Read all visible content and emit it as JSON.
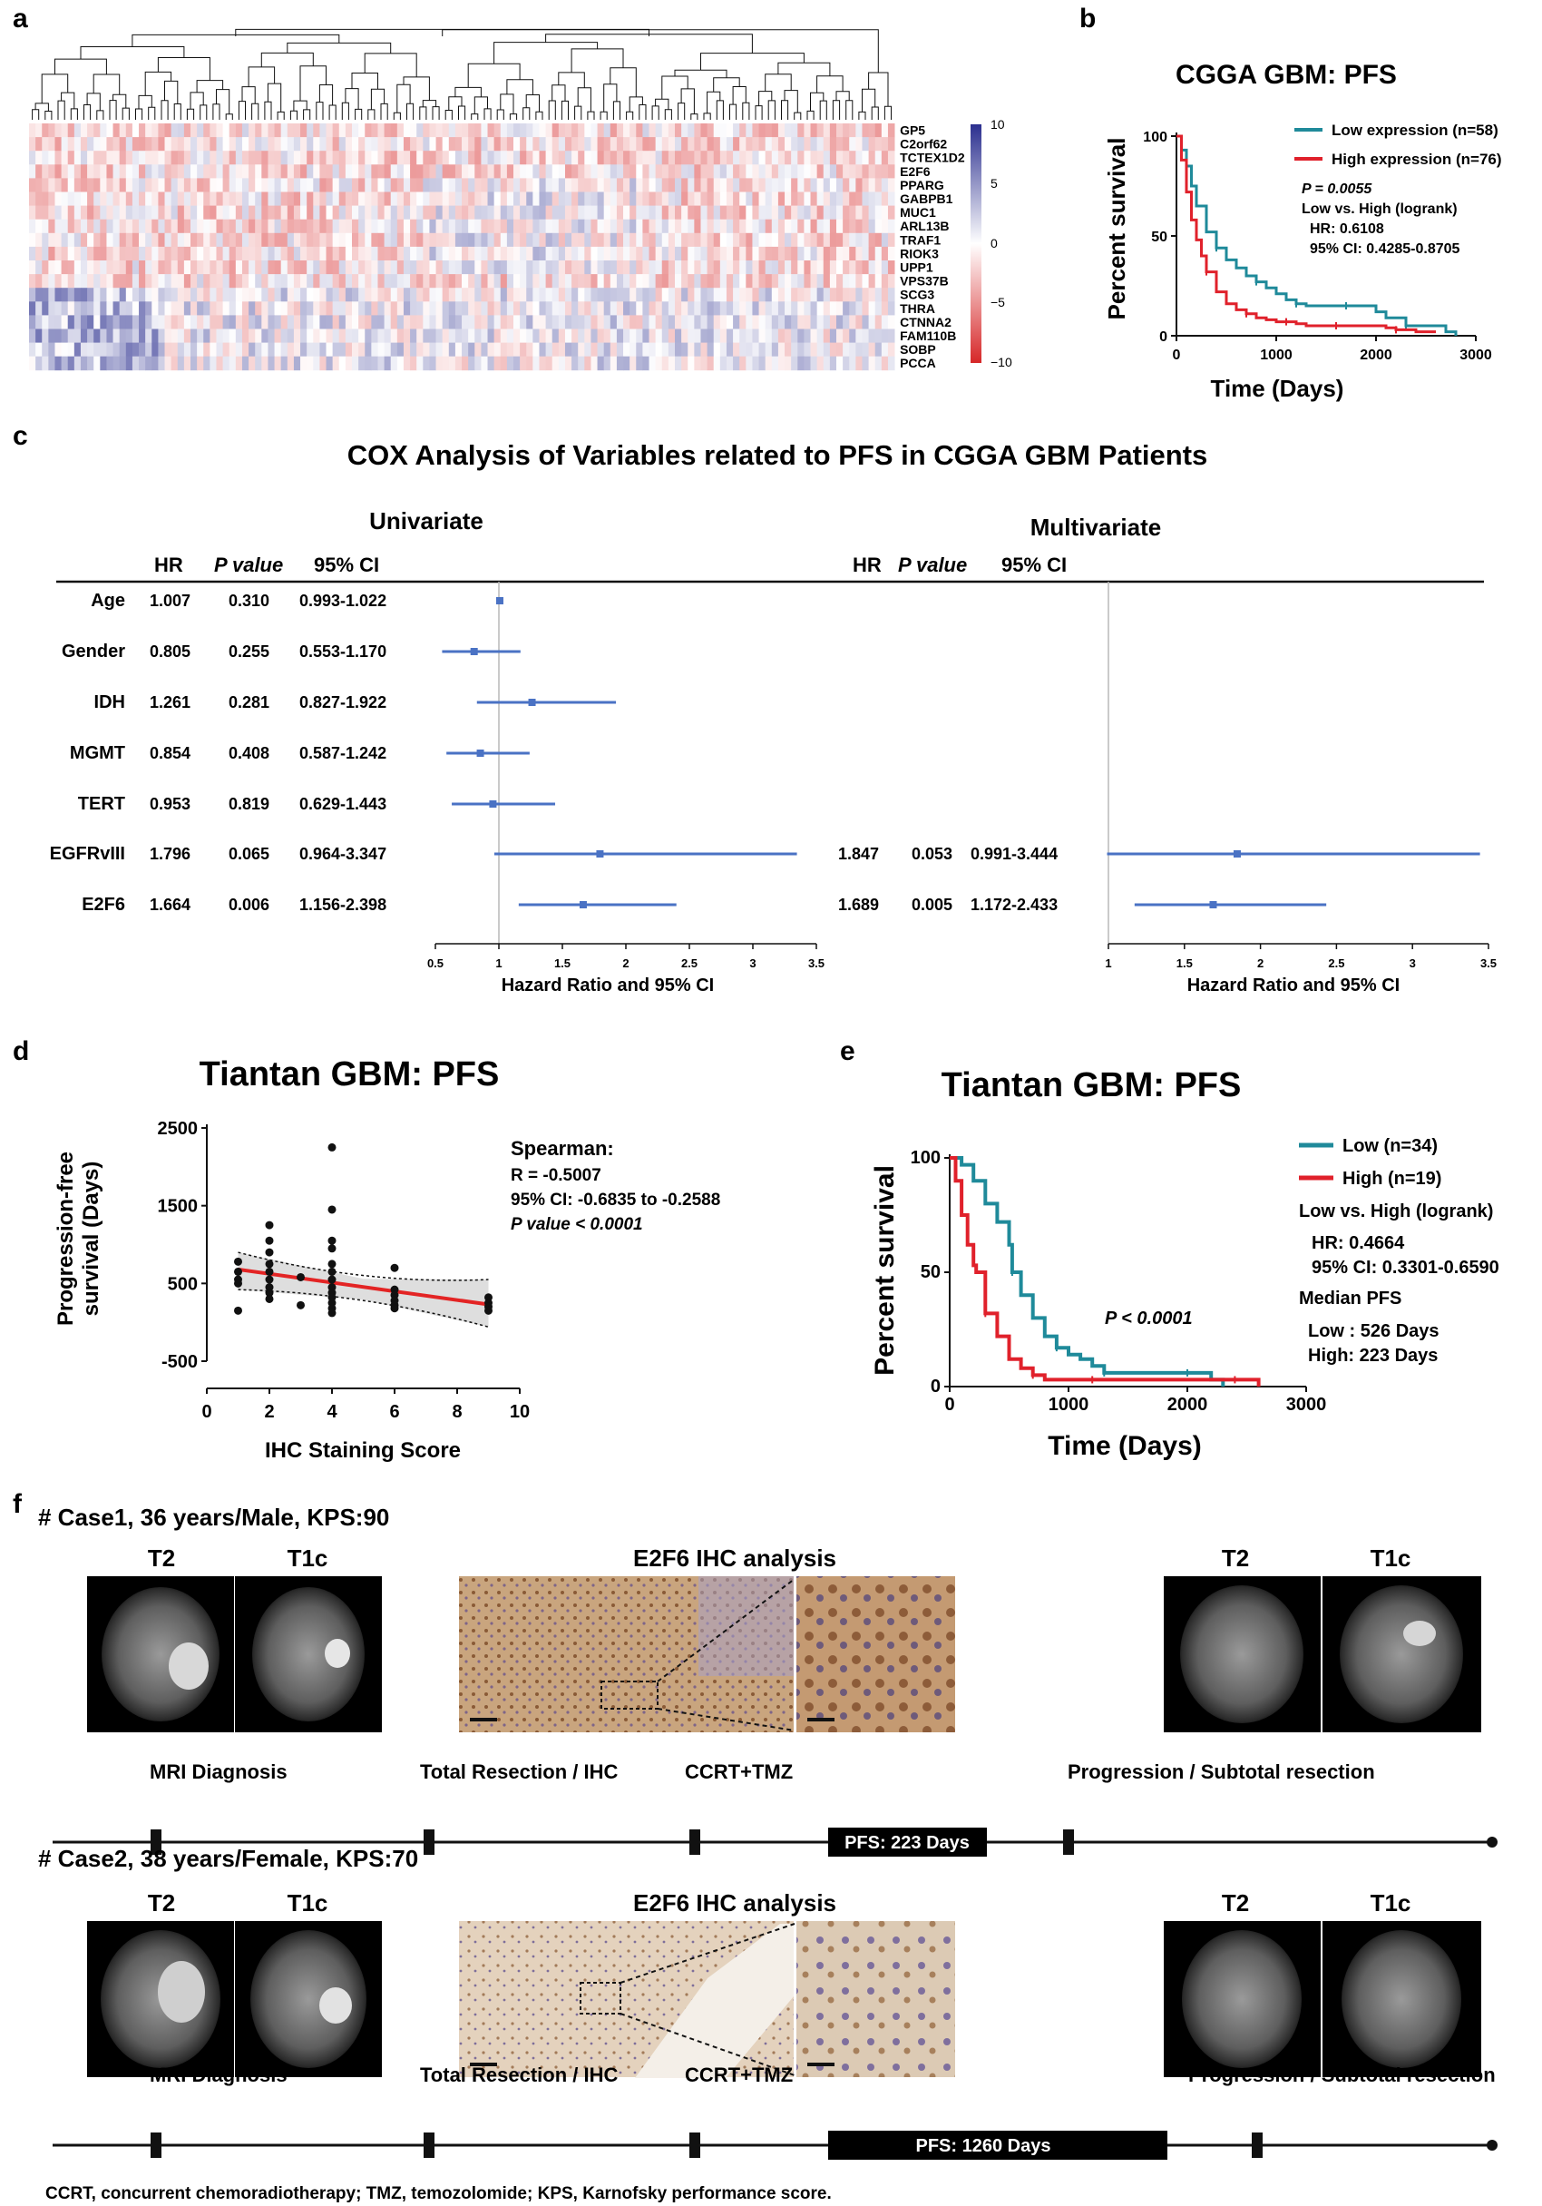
{
  "panel_letters": {
    "a": "a",
    "b": "b",
    "c": "c",
    "d": "d",
    "e": "e",
    "f": "f"
  },
  "colors": {
    "heat_low": "#d62728",
    "heat_mid": "#ffffff",
    "heat_high": "#2b2f8f",
    "low_expr": "#1f8a9a",
    "high_expr": "#e0212b",
    "forest": "#4a72c4",
    "reg_line": "#e32424",
    "band": "#d3d3d3",
    "timeline_box": "#000000"
  },
  "panel_a": {
    "genes": [
      "GP5",
      "C2orf62",
      "TCTEX1D2",
      "E2F6",
      "PPARG",
      "GABPB1",
      "MUC1",
      "ARL13B",
      "TRAF1",
      "RIOK3",
      "UPP1",
      "VPS37B",
      "SCG3",
      "THRA",
      "CTNNA2",
      "FAM110B",
      "SOBP",
      "PCCA"
    ],
    "colorbar_ticks": [
      "10",
      "5",
      "0",
      "−5",
      "−10"
    ]
  },
  "panel_b": {
    "title": "CGGA GBM: PFS",
    "ylabel": "Percent survival",
    "xlabel": "Time (Days)",
    "xticks": [
      "0",
      "1000",
      "2000",
      "3000"
    ],
    "yticks": [
      "0",
      "50",
      "100"
    ],
    "legend_low": "Low expression (n=58)",
    "legend_high": "High expression (n=76)",
    "stats": [
      "P = 0.0055",
      "Low vs. High (logrank)",
      "HR: 0.6108",
      "95% CI: 0.4285-0.8705"
    ]
  },
  "panel_c": {
    "title": "COX Analysis of Variables related to PFS in CGGA GBM Patients",
    "univariate_label": "Univariate",
    "multivariate_label": "Multivariate",
    "col_hr": "HR",
    "col_p": "P value",
    "col_ci": "95% CI",
    "axis_label": "Hazard Ratio and 95% CI",
    "uni_ticks": [
      "0.5",
      "1",
      "1.5",
      "2",
      "2.5",
      "3",
      "3.5"
    ],
    "multi_ticks": [
      "1",
      "1.5",
      "2",
      "2.5",
      "3",
      "3.5"
    ]
  },
  "panel_d": {
    "title": "Tiantan GBM: PFS",
    "ylabel_1": "Progression-free",
    "ylabel_2": "survival (Days)",
    "xlabel": "IHC Staining Score",
    "xticks": [
      "0",
      "2",
      "4",
      "6",
      "8",
      "10"
    ],
    "yticks": [
      "2500",
      "1500",
      "500",
      "-500"
    ],
    "stats_title": "Spearman:",
    "stats": [
      "R = -0.5007",
      "95% CI: -0.6835 to -0.2588",
      "P value < 0.0001"
    ]
  },
  "panel_e": {
    "title": "Tiantan GBM: PFS",
    "ylabel": "Percent survival",
    "xlabel": "Time (Days)",
    "xticks": [
      "0",
      "1000",
      "2000",
      "3000"
    ],
    "yticks": [
      "0",
      "50",
      "100"
    ],
    "legend_low": "Low (n=34)",
    "legend_high": "High (n=19)",
    "stats": [
      "Low vs. High (logrank)",
      "HR: 0.4664",
      "95% CI: 0.3301-0.6590",
      "Median PFS",
      "Low : 526 Days",
      "High:  223 Days"
    ],
    "pvalue": "P < 0.0001"
  },
  "panel_f": {
    "case1": {
      "header": "# Case1, 36 years/Male, KPS:90",
      "t2": "T2",
      "t1c": "T1c",
      "ihc": "E2F6 IHC analysis",
      "events": [
        "MRI Diagnosis",
        "Total Resection / IHC",
        "CCRT+TMZ",
        "Progression / Subtotal resection"
      ],
      "pfs": "PFS: 223 Days"
    },
    "case2": {
      "header": "# Case2, 38 years/Female, KPS:70",
      "t2": "T2",
      "t1c": "T1c",
      "ihc": "E2F6 IHC analysis",
      "events": [
        "MRI Diagnosis",
        "Total Resection / IHC",
        "CCRT+TMZ",
        "Progression / Subtotal resection"
      ],
      "pfs": "PFS: 1260 Days"
    },
    "footnote": "CCRT, concurrent chemoradiotherapy; TMZ, temozolomide; KPS, Karnofsky performance score."
  },
  "chart_data": [
    {
      "type": "heatmap",
      "rows": [
        "GP5",
        "C2orf62",
        "TCTEX1D2",
        "E2F6",
        "PPARG",
        "GABPB1",
        "MUC1",
        "ARL13B",
        "TRAF1",
        "RIOK3",
        "UPP1",
        "VPS37B",
        "SCG3",
        "THRA",
        "CTNNA2",
        "FAM110B",
        "SOBP",
        "PCCA"
      ],
      "color_range": [
        -10,
        10
      ],
      "dendrogram": true
    },
    {
      "type": "line",
      "title": "CGGA GBM: PFS",
      "xlabel": "Time (Days)",
      "ylabel": "Percent survival",
      "xlim": [
        0,
        3000
      ],
      "ylim": [
        0,
        100
      ],
      "series": [
        {
          "name": "Low expression (n=58)",
          "x": [
            0,
            50,
            100,
            150,
            200,
            300,
            400,
            500,
            600,
            700,
            800,
            900,
            1000,
            1100,
            1200,
            1300,
            1400,
            1500,
            1700,
            1900,
            2000,
            2100,
            2300,
            2500,
            2700,
            2800
          ],
          "y": [
            100,
            93,
            85,
            75,
            65,
            52,
            44,
            38,
            34,
            30,
            27,
            24,
            21,
            18,
            16,
            15,
            15,
            15,
            15,
            15,
            12,
            9,
            5,
            5,
            2,
            0
          ]
        },
        {
          "name": "High expression (n=76)",
          "x": [
            0,
            50,
            100,
            150,
            200,
            250,
            300,
            400,
            500,
            600,
            700,
            800,
            900,
            1000,
            1100,
            1200,
            1300,
            1400,
            1600,
            1800,
            2000,
            2100,
            2200,
            2400,
            2600
          ],
          "y": [
            100,
            88,
            72,
            58,
            48,
            40,
            32,
            22,
            16,
            13,
            11,
            9,
            8,
            7,
            7,
            6,
            5,
            5,
            5,
            5,
            5,
            4,
            3,
            2,
            2
          ]
        }
      ]
    },
    {
      "type": "forest",
      "title": "COX Analysis of Variables related to PFS in CGGA GBM Patients",
      "univariate": [
        {
          "label": "Age",
          "hr": "1.007",
          "p": "0.310",
          "ci": "0.993-1.022",
          "est": 1.007,
          "lo": 0.993,
          "hi": 1.022
        },
        {
          "label": "Gender",
          "hr": "0.805",
          "p": "0.255",
          "ci": "0.553-1.170",
          "est": 0.805,
          "lo": 0.553,
          "hi": 1.17
        },
        {
          "label": "IDH",
          "hr": "1.261",
          "p": "0.281",
          "ci": "0.827-1.922",
          "est": 1.261,
          "lo": 0.827,
          "hi": 1.922
        },
        {
          "label": "MGMT",
          "hr": "0.854",
          "p": "0.408",
          "ci": "0.587-1.242",
          "est": 0.854,
          "lo": 0.587,
          "hi": 1.242
        },
        {
          "label": "TERT",
          "hr": "0.953",
          "p": "0.819",
          "ci": "0.629-1.443",
          "est": 0.953,
          "lo": 0.629,
          "hi": 1.443
        },
        {
          "label": "EGFRvIII",
          "hr": "1.796",
          "p": "0.065",
          "ci": "0.964-3.347",
          "est": 1.796,
          "lo": 0.964,
          "hi": 3.347
        },
        {
          "label": "E2F6",
          "hr": "1.664",
          "p": "0.006",
          "ci": "1.156-2.398",
          "est": 1.664,
          "lo": 1.156,
          "hi": 2.398
        }
      ],
      "multivariate": [
        {
          "label": "EGFRvIII",
          "hr": "1.847",
          "p": "0.053",
          "ci": "0.991-3.444",
          "est": 1.847,
          "lo": 0.991,
          "hi": 3.444
        },
        {
          "label": "E2F6",
          "hr": "1.689",
          "p": "0.005",
          "ci": "1.172-2.433",
          "est": 1.689,
          "lo": 1.172,
          "hi": 2.433
        }
      ],
      "uni_xlim": [
        0.5,
        3.5
      ],
      "multi_xlim": [
        1,
        3.5
      ]
    },
    {
      "type": "scatter",
      "title": "Tiantan GBM: PFS",
      "xlabel": "IHC Staining Score",
      "ylabel": "Progression-free survival (Days)",
      "xlim": [
        0,
        10
      ],
      "ylim": [
        -500,
        2500
      ],
      "points": [
        [
          1,
          650
        ],
        [
          1,
          550
        ],
        [
          1,
          780
        ],
        [
          1,
          500
        ],
        [
          1,
          150
        ],
        [
          2,
          1250
        ],
        [
          2,
          1050
        ],
        [
          2,
          900
        ],
        [
          2,
          750
        ],
        [
          2,
          650
        ],
        [
          2,
          550
        ],
        [
          2,
          450
        ],
        [
          2,
          380
        ],
        [
          2,
          300
        ],
        [
          3,
          580
        ],
        [
          3,
          220
        ],
        [
          4,
          2250
        ],
        [
          4,
          1450
        ],
        [
          4,
          1050
        ],
        [
          4,
          950
        ],
        [
          4,
          750
        ],
        [
          4,
          650
        ],
        [
          4,
          550
        ],
        [
          4,
          450
        ],
        [
          4,
          380
        ],
        [
          4,
          320
        ],
        [
          4,
          250
        ],
        [
          4,
          180
        ],
        [
          4,
          120
        ],
        [
          6,
          700
        ],
        [
          6,
          420
        ],
        [
          6,
          350
        ],
        [
          6,
          280
        ],
        [
          6,
          220
        ],
        [
          6,
          180
        ],
        [
          9,
          320
        ],
        [
          9,
          250
        ],
        [
          9,
          200
        ],
        [
          9,
          150
        ]
      ],
      "regression": {
        "x": [
          1,
          9
        ],
        "y": [
          680,
          230
        ]
      }
    },
    {
      "type": "line",
      "title": "Tiantan GBM: PFS",
      "xlabel": "Time (Days)",
      "ylabel": "Percent survival",
      "xlim": [
        0,
        3000
      ],
      "ylim": [
        0,
        100
      ],
      "series": [
        {
          "name": "Low (n=34)",
          "x": [
            0,
            100,
            200,
            300,
            400,
            500,
            526,
            600,
            700,
            800,
            900,
            1000,
            1100,
            1200,
            1300,
            1400,
            1600,
            1800,
            2000,
            2200,
            2300
          ],
          "y": [
            100,
            97,
            90,
            80,
            72,
            62,
            50,
            40,
            30,
            22,
            17,
            14,
            12,
            9,
            6,
            6,
            6,
            6,
            6,
            3,
            0
          ]
        },
        {
          "name": "High (n=19)",
          "x": [
            0,
            50,
            100,
            150,
            200,
            223,
            300,
            400,
            500,
            600,
            700,
            800,
            900,
            1000,
            1200,
            1400,
            1600,
            2000,
            2400,
            2600
          ],
          "y": [
            100,
            90,
            75,
            62,
            53,
            50,
            32,
            22,
            12,
            8,
            5,
            3,
            3,
            3,
            3,
            3,
            3,
            3,
            3,
            0
          ]
        }
      ]
    }
  ]
}
